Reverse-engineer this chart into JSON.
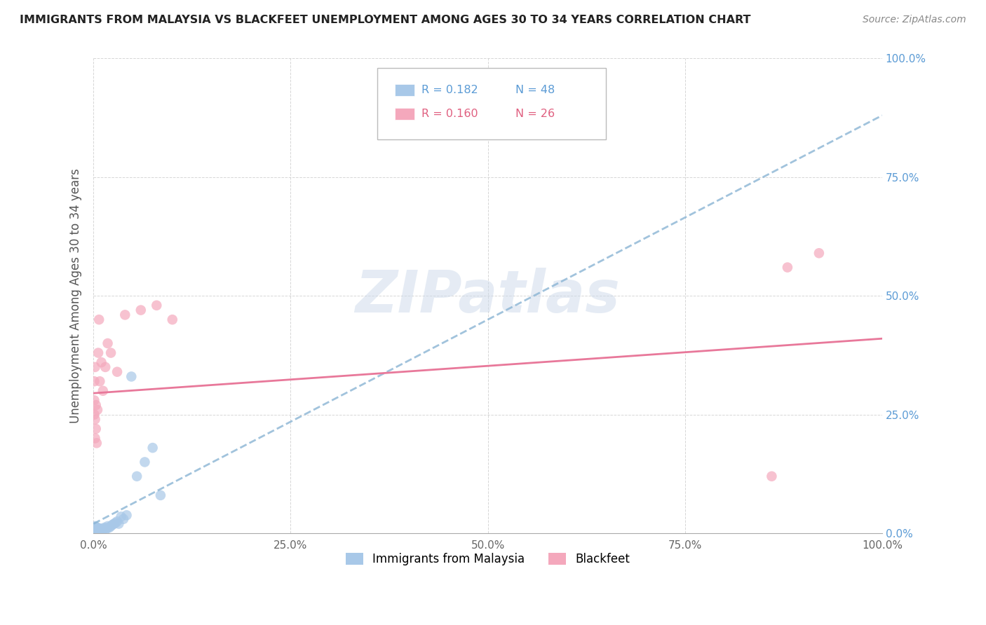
{
  "title": "IMMIGRANTS FROM MALAYSIA VS BLACKFEET UNEMPLOYMENT AMONG AGES 30 TO 34 YEARS CORRELATION CHART",
  "source": "Source: ZipAtlas.com",
  "ylabel": "Unemployment Among Ages 30 to 34 years",
  "watermark": "ZIPatlas",
  "xlim": [
    0.0,
    1.0
  ],
  "ylim": [
    0.0,
    1.0
  ],
  "xticks": [
    0.0,
    0.25,
    0.5,
    0.75,
    1.0
  ],
  "xtick_labels": [
    "0.0%",
    "25.0%",
    "50.0%",
    "75.0%",
    "100.0%"
  ],
  "ytick_vals": [
    0.0,
    0.25,
    0.5,
    0.75,
    1.0
  ],
  "ytick_labels_right": [
    "0.0%",
    "25.0%",
    "50.0%",
    "75.0%",
    "100.0%"
  ],
  "legend_r1": "R = 0.182",
  "legend_n1": "N = 48",
  "legend_r2": "R = 0.160",
  "legend_n2": "N = 26",
  "color_blue": "#a8c8e8",
  "color_pink": "#f4a8bc",
  "color_trendline_blue": "#8ab4d4",
  "color_trendline_pink": "#e8789a",
  "series1_name": "Immigrants from Malaysia",
  "series2_name": "Blackfeet",
  "series1_x": [
    0.001,
    0.001,
    0.001,
    0.001,
    0.001,
    0.002,
    0.002,
    0.002,
    0.002,
    0.003,
    0.003,
    0.003,
    0.004,
    0.004,
    0.005,
    0.005,
    0.005,
    0.006,
    0.006,
    0.007,
    0.007,
    0.008,
    0.008,
    0.009,
    0.01,
    0.01,
    0.011,
    0.012,
    0.013,
    0.014,
    0.015,
    0.017,
    0.018,
    0.02,
    0.022,
    0.024,
    0.026,
    0.028,
    0.03,
    0.032,
    0.035,
    0.038,
    0.042,
    0.048,
    0.055,
    0.065,
    0.075,
    0.085
  ],
  "series1_y": [
    0.0,
    0.003,
    0.005,
    0.008,
    0.012,
    0.002,
    0.006,
    0.01,
    0.015,
    0.004,
    0.008,
    0.013,
    0.005,
    0.01,
    0.003,
    0.007,
    0.012,
    0.005,
    0.009,
    0.004,
    0.008,
    0.005,
    0.01,
    0.007,
    0.004,
    0.009,
    0.006,
    0.008,
    0.01,
    0.012,
    0.008,
    0.01,
    0.015,
    0.012,
    0.015,
    0.018,
    0.02,
    0.022,
    0.025,
    0.02,
    0.035,
    0.03,
    0.038,
    0.33,
    0.12,
    0.15,
    0.18,
    0.08
  ],
  "series2_x": [
    0.001,
    0.001,
    0.001,
    0.002,
    0.002,
    0.002,
    0.003,
    0.003,
    0.004,
    0.005,
    0.006,
    0.007,
    0.008,
    0.01,
    0.012,
    0.015,
    0.018,
    0.022,
    0.03,
    0.04,
    0.06,
    0.08,
    0.1,
    0.86,
    0.88,
    0.92
  ],
  "series2_y": [
    0.25,
    0.28,
    0.32,
    0.2,
    0.24,
    0.35,
    0.22,
    0.27,
    0.19,
    0.26,
    0.38,
    0.45,
    0.32,
    0.36,
    0.3,
    0.35,
    0.4,
    0.38,
    0.34,
    0.46,
    0.47,
    0.48,
    0.45,
    0.12,
    0.56,
    0.59
  ],
  "trendline1_x": [
    0.0,
    1.0
  ],
  "trendline1_y": [
    0.02,
    0.88
  ],
  "trendline2_x": [
    0.0,
    1.0
  ],
  "trendline2_y": [
    0.295,
    0.41
  ]
}
